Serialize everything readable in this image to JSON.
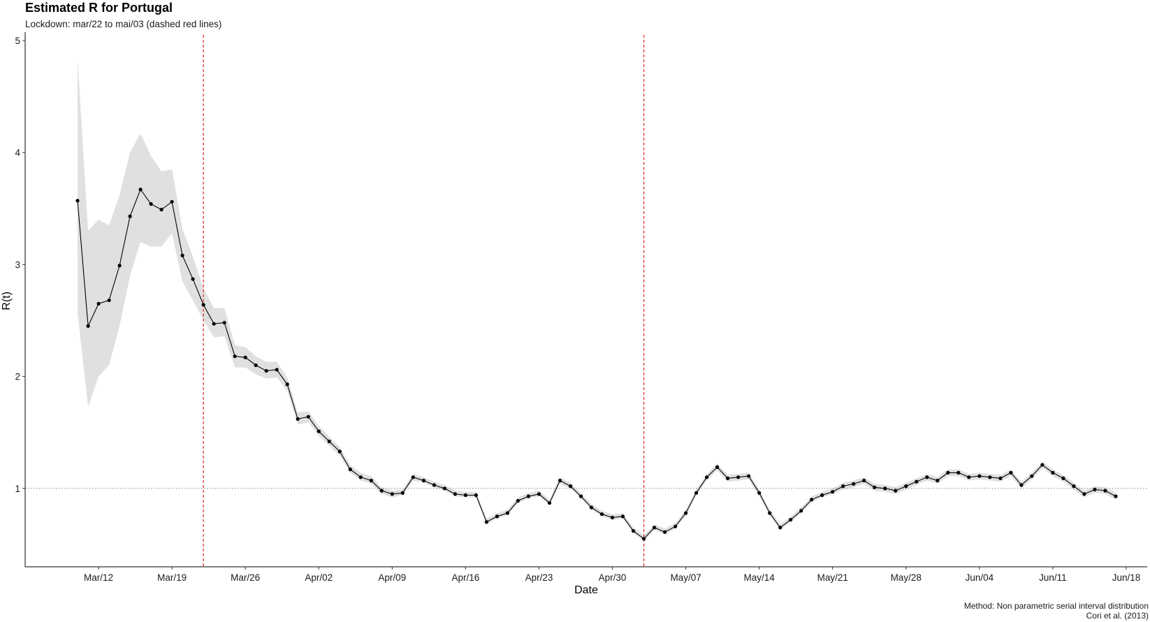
{
  "caption": {
    "line1": "Method: Non parametric serial interval distribution",
    "line2": "Cori et al. (2013)"
  },
  "chart_data": {
    "type": "line",
    "title": "Estimated R for Portugal",
    "subtitle": "Lockdown: mar/22 to mai/03 (dashed red lines)",
    "xlabel": "Date",
    "ylabel": "R(t)",
    "x_start": "2020-03-10",
    "x_step_days": 1,
    "xlim": [
      "2020-03-05",
      "2020-06-20"
    ],
    "ylim": [
      0.3,
      5.05
    ],
    "x_ticks": [
      "2020-03-12",
      "2020-03-19",
      "2020-03-26",
      "2020-04-02",
      "2020-04-09",
      "2020-04-16",
      "2020-04-23",
      "2020-04-30",
      "2020-05-07",
      "2020-05-14",
      "2020-05-21",
      "2020-05-28",
      "2020-06-04",
      "2020-06-11",
      "2020-06-18"
    ],
    "x_tick_labels": [
      "Mar/12",
      "Mar/19",
      "Mar/26",
      "Apr/02",
      "Apr/09",
      "Apr/16",
      "Apr/23",
      "Apr/30",
      "May/07",
      "May/14",
      "May/21",
      "May/28",
      "Jun/04",
      "Jun/11",
      "Jun/18"
    ],
    "y_ticks": [
      1,
      2,
      3,
      4,
      5
    ],
    "y_tick_labels": [
      "1",
      "2",
      "3",
      "4",
      "5"
    ],
    "reference_hline": 1,
    "vlines": [
      "2020-03-22",
      "2020-05-03"
    ],
    "grid": false,
    "colors": {
      "line": "#000000",
      "ribbon": "#e0e0e0",
      "vline": "#e02020",
      "hline": "#555555"
    },
    "series": [
      {
        "values": [
          3.57,
          2.45,
          2.65,
          2.68,
          2.99,
          3.43,
          3.67,
          3.54,
          3.49,
          3.56,
          3.08,
          2.87,
          2.64,
          2.47,
          2.48,
          2.18,
          2.17,
          2.1,
          2.05,
          2.06,
          1.93,
          1.62,
          1.64,
          1.51,
          1.42,
          1.33,
          1.17,
          1.1,
          1.07,
          0.98,
          0.95,
          0.96,
          1.1,
          1.07,
          1.03,
          1.0,
          0.95,
          0.94,
          0.94,
          0.7,
          0.75,
          0.78,
          0.89,
          0.93,
          0.95,
          0.87,
          1.07,
          1.02,
          0.93,
          0.83,
          0.77,
          0.74,
          0.75,
          0.62,
          0.55,
          0.65,
          0.61,
          0.66,
          0.78,
          0.96,
          1.1,
          1.19,
          1.09,
          1.1,
          1.11,
          0.96,
          0.78,
          0.65,
          0.72,
          0.8,
          0.9,
          0.94,
          0.97,
          1.02,
          1.04,
          1.07,
          1.01,
          1.0,
          0.98,
          1.02,
          1.06,
          1.1,
          1.07,
          1.14,
          1.14,
          1.1,
          1.11,
          1.1,
          1.09,
          1.14,
          1.03,
          1.11,
          1.21,
          1.14,
          1.09,
          1.02,
          0.95,
          0.99,
          0.98,
          0.93
        ],
        "lower": [
          2.57,
          1.73,
          2.0,
          2.1,
          2.45,
          2.9,
          3.2,
          3.16,
          3.16,
          3.28,
          2.85,
          2.68,
          2.5,
          2.35,
          2.36,
          2.08,
          2.08,
          2.02,
          1.98,
          1.99,
          1.87,
          1.57,
          1.59,
          1.47,
          1.38,
          1.29,
          1.14,
          1.07,
          1.04,
          0.95,
          0.92,
          0.94,
          1.07,
          1.05,
          1.01,
          0.98,
          0.93,
          0.92,
          0.92,
          0.68,
          0.73,
          0.76,
          0.87,
          0.91,
          0.93,
          0.85,
          1.04,
          1.0,
          0.91,
          0.81,
          0.75,
          0.72,
          0.73,
          0.6,
          0.53,
          0.63,
          0.59,
          0.64,
          0.76,
          0.94,
          1.07,
          1.16,
          1.06,
          1.07,
          1.08,
          0.93,
          0.76,
          0.63,
          0.7,
          0.78,
          0.88,
          0.92,
          0.95,
          0.99,
          1.01,
          1.04,
          0.98,
          0.97,
          0.95,
          0.99,
          1.03,
          1.07,
          1.04,
          1.11,
          1.11,
          1.07,
          1.08,
          1.07,
          1.06,
          1.11,
          1.0,
          1.08,
          1.18,
          1.11,
          1.06,
          0.99,
          0.92,
          0.96,
          0.95,
          0.9
        ],
        "upper": [
          4.84,
          3.3,
          3.4,
          3.35,
          3.62,
          4.0,
          4.17,
          3.97,
          3.83,
          3.85,
          3.32,
          3.07,
          2.79,
          2.61,
          2.61,
          2.28,
          2.26,
          2.18,
          2.13,
          2.13,
          1.99,
          1.68,
          1.69,
          1.56,
          1.46,
          1.37,
          1.21,
          1.14,
          1.11,
          1.01,
          0.98,
          0.99,
          1.13,
          1.1,
          1.06,
          1.03,
          0.98,
          0.97,
          0.97,
          0.73,
          0.78,
          0.81,
          0.92,
          0.96,
          0.98,
          0.9,
          1.1,
          1.05,
          0.96,
          0.86,
          0.8,
          0.77,
          0.78,
          0.65,
          0.58,
          0.68,
          0.64,
          0.69,
          0.81,
          0.99,
          1.13,
          1.22,
          1.12,
          1.13,
          1.14,
          0.99,
          0.81,
          0.68,
          0.75,
          0.83,
          0.93,
          0.97,
          1.0,
          1.05,
          1.07,
          1.1,
          1.04,
          1.03,
          1.01,
          1.05,
          1.09,
          1.13,
          1.1,
          1.17,
          1.17,
          1.13,
          1.14,
          1.13,
          1.12,
          1.17,
          1.06,
          1.14,
          1.24,
          1.17,
          1.12,
          1.05,
          0.98,
          1.02,
          1.01,
          0.96
        ]
      }
    ]
  }
}
